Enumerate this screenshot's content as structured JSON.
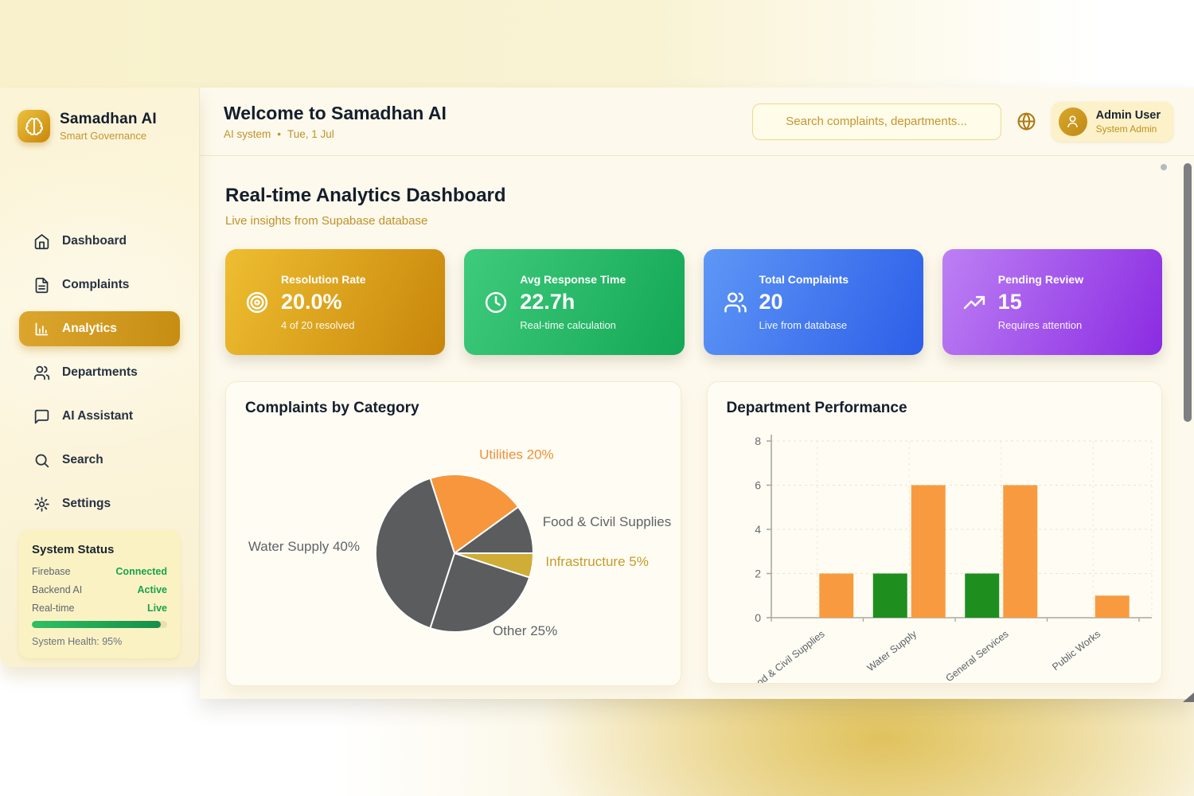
{
  "brand": {
    "name": "Samadhan AI",
    "tagline": "Smart Governance",
    "logo_icon": "brain-icon"
  },
  "sidebar": {
    "items": [
      {
        "label": "Dashboard",
        "icon": "home",
        "active": false
      },
      {
        "label": "Complaints",
        "icon": "file-text",
        "active": false
      },
      {
        "label": "Analytics",
        "icon": "bar-chart",
        "active": true
      },
      {
        "label": "Departments",
        "icon": "users",
        "active": false
      },
      {
        "label": "AI Assistant",
        "icon": "message-square",
        "active": false
      },
      {
        "label": "Search",
        "icon": "search",
        "active": false
      },
      {
        "label": "Settings",
        "icon": "settings",
        "active": false
      }
    ],
    "system_status": {
      "title": "System Status",
      "rows": [
        {
          "label": "Firebase",
          "value": "Connected"
        },
        {
          "label": "Backend AI",
          "value": "Active"
        },
        {
          "label": "Real-time",
          "value": "Live"
        }
      ],
      "value_color": "#16a34a",
      "health_percent": 95,
      "health_label": "System Health: 95%"
    }
  },
  "header": {
    "title": "Welcome to Samadhan AI",
    "subtitle_primary": "AI system",
    "subtitle_separator": "•",
    "subtitle_date": "Tue, 1 Jul",
    "search_placeholder": "Search complaints, departments...",
    "user": {
      "name": "Admin User",
      "role": "System Admin"
    }
  },
  "page": {
    "title": "Real-time Analytics Dashboard",
    "subtitle": "Live insights from Supabase database"
  },
  "stats": [
    {
      "title": "Resolution Rate",
      "value": "20.0%",
      "sub": "4 of 20 resolved",
      "icon": "target",
      "gradient_from": "#eebe31",
      "gradient_to": "#c8860a"
    },
    {
      "title": "Avg Response Time",
      "value": "22.7h",
      "sub": "Real-time calculation",
      "icon": "clock",
      "gradient_from": "#3fcb7c",
      "gradient_to": "#13a756"
    },
    {
      "title": "Total Complaints",
      "value": "20",
      "sub": "Live from database",
      "icon": "users",
      "gradient_from": "#5e97f6",
      "gradient_to": "#2c5ee8"
    },
    {
      "title": "Pending Review",
      "value": "15",
      "sub": "Requires attention",
      "icon": "trending-up",
      "gradient_from": "#bd80f4",
      "gradient_to": "#8a2be2"
    }
  ],
  "chart_data": [
    {
      "type": "pie",
      "title": "Complaints by Category",
      "start_angle_deg": -18,
      "slices": [
        {
          "label": "Utilities 20%",
          "value": 20,
          "color": "#f7963c",
          "label_color": "#ee8f3a"
        },
        {
          "label": "Food & Civil Supplies",
          "value": 10,
          "color": "#5b5c5e",
          "label_color": "#5f6368"
        },
        {
          "label": "Infrastructure 5%",
          "value": 5,
          "color": "#cfad36",
          "label_color": "#c49b2b"
        },
        {
          "label": "Other 25%",
          "value": 25,
          "color": "#5b5c5e",
          "label_color": "#5f6368"
        },
        {
          "label": "Water Supply 40%",
          "value": 40,
          "color": "#5b5c5e",
          "label_color": "#5f6368"
        }
      ]
    },
    {
      "type": "bar",
      "title": "Department Performance",
      "categories": [
        "Food & Civil Supplies",
        "Water Supply",
        "General Services",
        "Public Works"
      ],
      "series": [
        {
          "name": "green-series",
          "color": "#1e8e1e",
          "values": [
            0,
            2,
            2,
            0
          ]
        },
        {
          "name": "orange-series",
          "color": "#f89b40",
          "values": [
            2,
            6,
            6,
            1
          ]
        }
      ],
      "ylim": [
        0,
        8
      ],
      "yticks": [
        0,
        2,
        4,
        6,
        8
      ],
      "grid": true,
      "legend": "none"
    }
  ]
}
